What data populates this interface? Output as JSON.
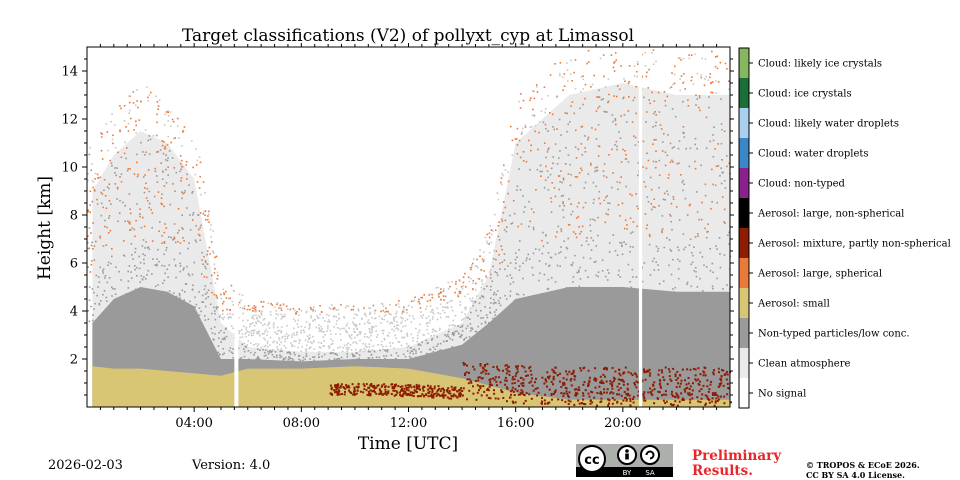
{
  "chart_data": {
    "type": "heatmap",
    "title": "Target classifications (V2) of pollyxt_cyp at Limassol",
    "xlabel": "Time [UTC]",
    "ylabel": "Height [km]",
    "xlim": [
      0,
      24
    ],
    "ylim": [
      0,
      15
    ],
    "x_tick_values": [
      4,
      8,
      12,
      16,
      20
    ],
    "x_tick_labels": [
      "04:00",
      "08:00",
      "12:00",
      "16:00",
      "20:00"
    ],
    "y_tick_values": [
      2,
      4,
      6,
      8,
      10,
      12,
      14
    ],
    "y_tick_labels": [
      "2",
      "4",
      "6",
      "8",
      "10",
      "12",
      "14"
    ],
    "data_gaps_hours": [
      [
        5.5,
        5.65
      ],
      [
        20.6,
        20.72
      ]
    ],
    "layer_tops_km": {
      "times": [
        0.2,
        1.0,
        2.0,
        3.0,
        4.0,
        5.0,
        6.0,
        8.0,
        10.0,
        12.0,
        14.0,
        15.0,
        16.0,
        18.0,
        20.0,
        22.0,
        24.0
      ],
      "aerosol_small": [
        1.7,
        1.6,
        1.6,
        1.5,
        1.4,
        1.3,
        1.6,
        1.6,
        1.7,
        1.6,
        1.2,
        0.9,
        0.6,
        0.3,
        0.3,
        0.3,
        0.3
      ],
      "non_typed": [
        3.5,
        4.5,
        5.0,
        4.8,
        4.2,
        2.0,
        2.0,
        1.9,
        2.0,
        2.0,
        2.6,
        3.5,
        4.5,
        5.0,
        5.0,
        4.8,
        4.8
      ],
      "clean_atmosphere": [
        9.0,
        10.5,
        11.5,
        11.0,
        9.5,
        3.5,
        2.5,
        2.3,
        2.3,
        2.5,
        3.5,
        5.5,
        11.0,
        13.0,
        13.5,
        13.0,
        13.0
      ]
    },
    "classes": [
      {
        "label": "No signal",
        "color": "#ffffff"
      },
      {
        "label": "Clean atmosphere",
        "color": "#eaeaea"
      },
      {
        "label": "Non-typed particles/low conc.",
        "color": "#9a9a9a"
      },
      {
        "label": "Aerosol: small",
        "color": "#d9c675"
      },
      {
        "label": "Aerosol: large, spherical",
        "color": "#ea7a3c"
      },
      {
        "label": "Aerosol: mixture, partly non-spherical",
        "color": "#8c1c02"
      },
      {
        "label": "Aerosol: large, non-spherical",
        "color": "#000000"
      },
      {
        "label": "Cloud: non-typed",
        "color": "#88228a"
      },
      {
        "label": "Cloud: water droplets",
        "color": "#3a86c7"
      },
      {
        "label": "Cloud: likely water droplets",
        "color": "#a9d0ef"
      },
      {
        "label": "Cloud: ice crystals",
        "color": "#1b6e35"
      },
      {
        "label": "Cloud: likely ice crystals",
        "color": "#86b65d"
      }
    ]
  },
  "footer": {
    "date": "2026-02-03",
    "version": "Version: 4.0",
    "cc_icon": "cc-by-sa-icon",
    "cc_by": "BY",
    "cc_sa": "SA",
    "preliminary_line1": "Preliminary",
    "preliminary_line2": "Results.",
    "copyright_line1": "© TROPOS & ECoE 2026.",
    "copyright_line2": "CC BY SA 4.0 License."
  }
}
